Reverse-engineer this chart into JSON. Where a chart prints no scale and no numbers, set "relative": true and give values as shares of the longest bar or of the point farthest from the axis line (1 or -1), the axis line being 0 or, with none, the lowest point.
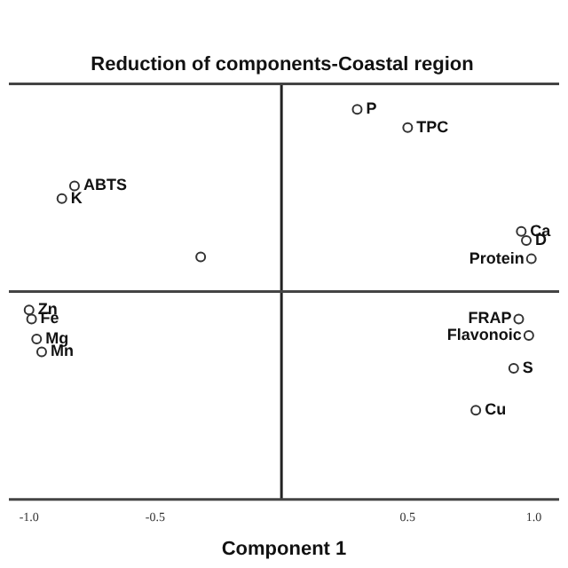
{
  "chart_data": {
    "type": "scatter",
    "title": "Reduction of components-Coastal region",
    "xlabel": "Component 1",
    "x": [
      0.3,
      0.5,
      -0.82,
      -0.87,
      -0.32,
      0.95,
      0.97,
      0.99,
      -1.0,
      -0.99,
      -0.97,
      -0.95,
      0.94,
      0.98,
      0.92,
      0.77
    ],
    "series": [
      {
        "color": "#333333",
        "values": [
          1,
          0.9,
          0.58,
          0.51,
          0.19,
          0.33,
          0.28,
          0.18,
          -0.1,
          -0.15,
          -0.26,
          -0.33,
          -0.15,
          -0.24,
          -0.42,
          -0.65
        ]
      }
    ],
    "relative": true,
    "value_labels": [
      "P",
      "TPC",
      "ABTS",
      "K",
      null,
      "Ca",
      "D",
      "Protein",
      "Zn",
      "Fe",
      "Mg",
      "Mn",
      "FRAP",
      "Flavonoic",
      "S",
      "Cu"
    ],
    "xlim": [
      -1.08,
      1.1
    ],
    "xticks": [
      {
        "value": -1.0,
        "label": "-1.0"
      },
      {
        "value": -0.5,
        "label": "-0.5"
      },
      {
        "value": 0,
        "label": null
      },
      {
        "value": 0.5,
        "label": "0.5"
      },
      {
        "value": 1.0,
        "label": "1.0"
      }
    ],
    "marker": "circle",
    "grid": false,
    "ref_lines": [
      {
        "axis": "x",
        "value": 0,
        "color": "#222222"
      }
    ]
  }
}
